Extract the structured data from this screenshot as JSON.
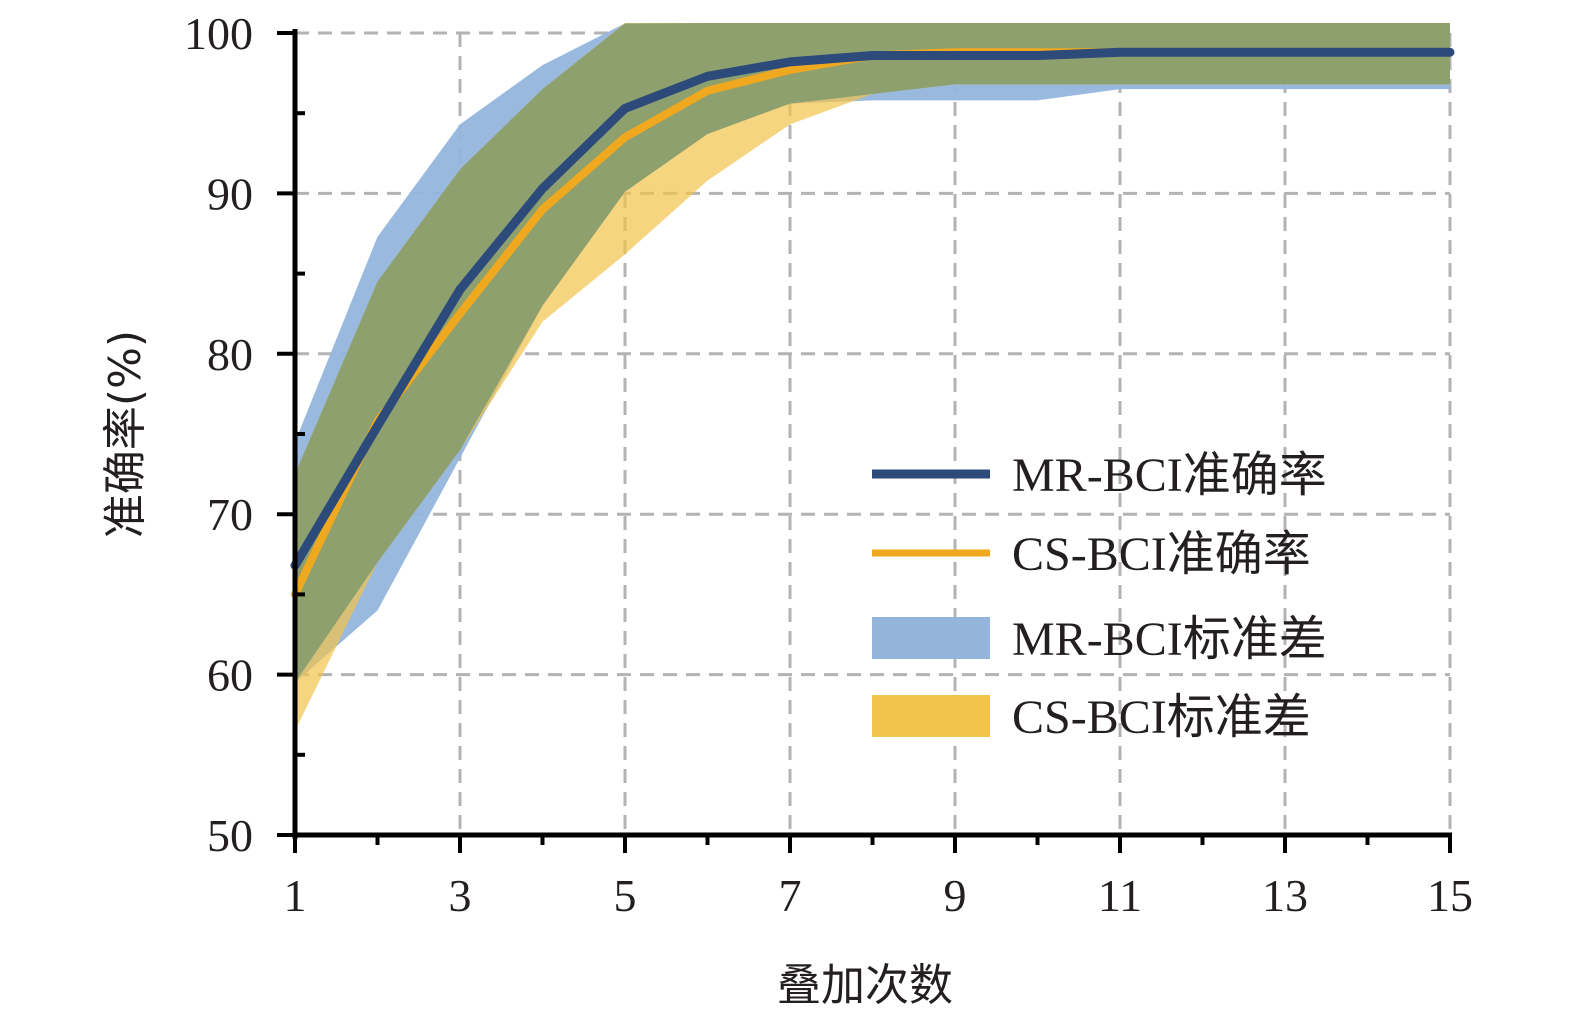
{
  "chart_data": {
    "type": "line",
    "title": "",
    "xlabel": "叠加次数",
    "ylabel": "准确率(%)",
    "xlim": [
      1,
      15
    ],
    "ylim": [
      50,
      100
    ],
    "x_ticks": [
      1,
      3,
      5,
      7,
      9,
      11,
      13,
      15
    ],
    "y_ticks": [
      50,
      60,
      70,
      80,
      90,
      100
    ],
    "grid": true,
    "legend_position": "center-right",
    "x": [
      1,
      2,
      3,
      4,
      5,
      6,
      7,
      8,
      9,
      10,
      11,
      12,
      13,
      14,
      15
    ],
    "series": [
      {
        "name": "MR-BCI准确率",
        "kind": "line",
        "color": "#2c4a7a",
        "values": [
          66.8,
          75.5,
          84.0,
          90.3,
          95.3,
          97.3,
          98.2,
          98.6,
          98.6,
          98.6,
          98.8,
          98.8,
          98.8,
          98.8,
          98.8
        ]
      },
      {
        "name": "CS-BCI准确率",
        "kind": "line",
        "color": "#f0a81e",
        "values": [
          65.0,
          75.8,
          82.5,
          89.0,
          93.5,
          96.4,
          97.7,
          98.6,
          98.8,
          98.8,
          98.8,
          98.8,
          98.8,
          98.8,
          98.8
        ]
      },
      {
        "name": "MR-BCI标准差",
        "kind": "band",
        "color": "#93b5dc",
        "upper": [
          74.5,
          87.3,
          94.3,
          98.0,
          100.6,
          100.9,
          101.0,
          101.3,
          101.2,
          101.2,
          101.0,
          101.0,
          101.0,
          101.0,
          101.0
        ],
        "lower": [
          59.5,
          64.0,
          73.5,
          83.0,
          90.1,
          93.7,
          95.6,
          95.8,
          95.8,
          95.8,
          96.5,
          96.5,
          96.5,
          96.5,
          96.5
        ]
      },
      {
        "name": "CS-BCI标准差",
        "kind": "band",
        "color": "#f2c34a",
        "upper": [
          72.5,
          84.5,
          91.5,
          96.5,
          101.1,
          101.6,
          101.3,
          101.0,
          100.8,
          100.8,
          100.8,
          100.8,
          100.8,
          100.8,
          100.8
        ],
        "lower": [
          56.5,
          67.0,
          74.0,
          82.0,
          86.2,
          90.8,
          94.3,
          96.2,
          96.8,
          96.8,
          96.8,
          96.8,
          96.8,
          96.8,
          96.8
        ]
      }
    ]
  }
}
